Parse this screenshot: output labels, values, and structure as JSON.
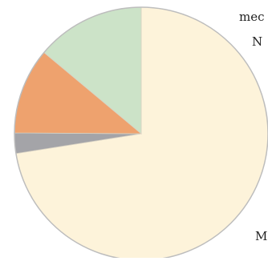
{
  "chart_data": {
    "type": "pie",
    "start_angle_deg": 0,
    "direction": "clockwise",
    "series": [
      {
        "slices": [
          {
            "label": "M",
            "value": 72.5,
            "color": "#fdf3da"
          },
          {
            "label": "",
            "value": 2.6,
            "color": "#a4a4a8"
          },
          {
            "label": "",
            "value": 11.0,
            "color": "#eea26e"
          },
          {
            "label": "",
            "value": 13.9,
            "color": "#cce3c8"
          }
        ]
      }
    ],
    "labels": [
      {
        "text": "mec"
      },
      {
        "text": "N"
      },
      {
        "text": "M"
      }
    ],
    "slice_edge_color": "#d8d2c4",
    "outline_color": "#bdbdbd"
  }
}
